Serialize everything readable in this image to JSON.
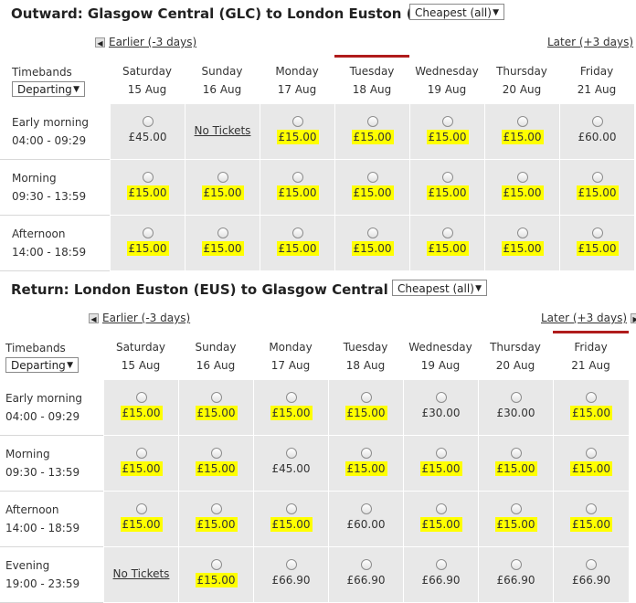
{
  "outward": {
    "title": "Outward: Glasgow Central (GLC) to London Euston (EUS)",
    "sort_select": "Cheapest (all)",
    "earlier_label": "Earlier (-3 days)",
    "later_label": "Later (+3 days)",
    "timebands_label": "Timebands",
    "departing_select": "Departing",
    "selected_day_index": 3,
    "days": [
      {
        "name": "Saturday",
        "date": "15 Aug"
      },
      {
        "name": "Sunday",
        "date": "16 Aug"
      },
      {
        "name": "Monday",
        "date": "17 Aug"
      },
      {
        "name": "Tuesday",
        "date": "18 Aug"
      },
      {
        "name": "Wednesday",
        "date": "19 Aug"
      },
      {
        "name": "Thursday",
        "date": "20 Aug"
      },
      {
        "name": "Friday",
        "date": "21 Aug"
      }
    ],
    "rows": [
      {
        "band": "Early morning",
        "time": "04:00 - 09:29",
        "cells": [
          {
            "price": "£45.00",
            "cheapest": false
          },
          {
            "notix": "No Tickets"
          },
          {
            "price": "£15.00",
            "cheapest": true
          },
          {
            "price": "£15.00",
            "cheapest": true
          },
          {
            "price": "£15.00",
            "cheapest": true
          },
          {
            "price": "£15.00",
            "cheapest": true
          },
          {
            "price": "£60.00",
            "cheapest": false
          }
        ]
      },
      {
        "band": "Morning",
        "time": "09:30 - 13:59",
        "cells": [
          {
            "price": "£15.00",
            "cheapest": true
          },
          {
            "price": "£15.00",
            "cheapest": true
          },
          {
            "price": "£15.00",
            "cheapest": true
          },
          {
            "price": "£15.00",
            "cheapest": true
          },
          {
            "price": "£15.00",
            "cheapest": true
          },
          {
            "price": "£15.00",
            "cheapest": true
          },
          {
            "price": "£15.00",
            "cheapest": true
          }
        ]
      },
      {
        "band": "Afternoon",
        "time": "14:00 - 18:59",
        "cells": [
          {
            "price": "£15.00",
            "cheapest": true
          },
          {
            "price": "£15.00",
            "cheapest": true
          },
          {
            "price": "£15.00",
            "cheapest": true
          },
          {
            "price": "£15.00",
            "cheapest": true
          },
          {
            "price": "£15.00",
            "cheapest": true
          },
          {
            "price": "£15.00",
            "cheapest": true
          },
          {
            "price": "£15.00",
            "cheapest": true
          }
        ]
      }
    ]
  },
  "return": {
    "title": "Return: London Euston (EUS) to Glasgow Central (GLC)",
    "sort_select": "Cheapest (all)",
    "earlier_label": "Earlier (-3 days)",
    "later_label": "Later (+3 days)",
    "timebands_label": "Timebands",
    "departing_select": "Departing",
    "selected_day_index": 6,
    "days": [
      {
        "name": "Saturday",
        "date": "15 Aug"
      },
      {
        "name": "Sunday",
        "date": "16 Aug"
      },
      {
        "name": "Monday",
        "date": "17 Aug"
      },
      {
        "name": "Tuesday",
        "date": "18 Aug"
      },
      {
        "name": "Wednesday",
        "date": "19 Aug"
      },
      {
        "name": "Thursday",
        "date": "20 Aug"
      },
      {
        "name": "Friday",
        "date": "21 Aug"
      }
    ],
    "rows": [
      {
        "band": "Early morning",
        "time": "04:00 - 09:29",
        "cells": [
          {
            "price": "£15.00",
            "cheapest": true
          },
          {
            "price": "£15.00",
            "cheapest": true
          },
          {
            "price": "£15.00",
            "cheapest": true
          },
          {
            "price": "£15.00",
            "cheapest": true
          },
          {
            "price": "£30.00",
            "cheapest": false
          },
          {
            "price": "£30.00",
            "cheapest": false
          },
          {
            "price": "£15.00",
            "cheapest": true
          }
        ]
      },
      {
        "band": "Morning",
        "time": "09:30 - 13:59",
        "cells": [
          {
            "price": "£15.00",
            "cheapest": true
          },
          {
            "price": "£15.00",
            "cheapest": true
          },
          {
            "price": "£45.00",
            "cheapest": false
          },
          {
            "price": "£15.00",
            "cheapest": true
          },
          {
            "price": "£15.00",
            "cheapest": true
          },
          {
            "price": "£15.00",
            "cheapest": true
          },
          {
            "price": "£15.00",
            "cheapest": true
          }
        ]
      },
      {
        "band": "Afternoon",
        "time": "14:00 - 18:59",
        "cells": [
          {
            "price": "£15.00",
            "cheapest": true
          },
          {
            "price": "£15.00",
            "cheapest": true
          },
          {
            "price": "£15.00",
            "cheapest": true
          },
          {
            "price": "£60.00",
            "cheapest": false
          },
          {
            "price": "£15.00",
            "cheapest": true
          },
          {
            "price": "£15.00",
            "cheapest": true
          },
          {
            "price": "£15.00",
            "cheapest": true
          }
        ]
      },
      {
        "band": "Evening",
        "time": "19:00 - 23:59",
        "cells": [
          {
            "notix": "No Tickets"
          },
          {
            "price": "£15.00",
            "cheapest": true
          },
          {
            "price": "£66.90",
            "cheapest": false
          },
          {
            "price": "£66.90",
            "cheapest": false
          },
          {
            "price": "£66.90",
            "cheapest": false
          },
          {
            "price": "£66.90",
            "cheapest": false
          },
          {
            "price": "£66.90",
            "cheapest": false
          }
        ]
      }
    ]
  },
  "icons": {
    "prev_arrow": "◀",
    "next_arrow": "▶",
    "caret": "▼"
  }
}
